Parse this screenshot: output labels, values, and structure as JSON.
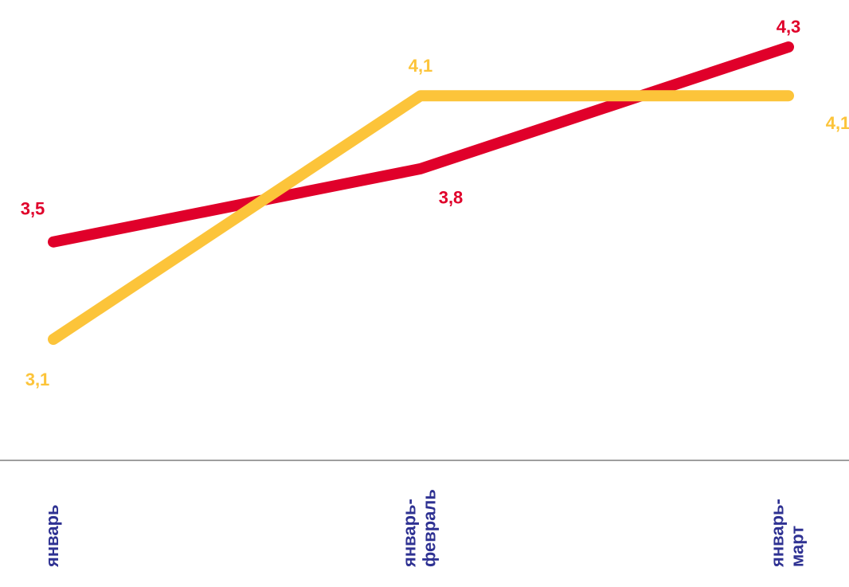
{
  "chart_data": {
    "type": "line",
    "categories": [
      "январь",
      "январь-февраль",
      "январь-март"
    ],
    "category_lines": [
      [
        "январь"
      ],
      [
        "январь-",
        "февраль"
      ],
      [
        "январь-",
        "март"
      ]
    ],
    "series": [
      {
        "values": [
          3.5,
          3.8,
          4.3
        ],
        "labels": [
          "3,5",
          "3,8",
          "4,3"
        ],
        "color": "#e0002a"
      },
      {
        "values": [
          3.1,
          4.1,
          4.1
        ],
        "labels": [
          "3,1",
          "4,1",
          "4,1"
        ],
        "color": "#fcc43a"
      }
    ],
    "axis_color": "#7f7f7f",
    "tick_label_color": "#2e3192",
    "ylim": [
      2.5,
      4.5
    ],
    "grid": false,
    "legend": "none"
  }
}
